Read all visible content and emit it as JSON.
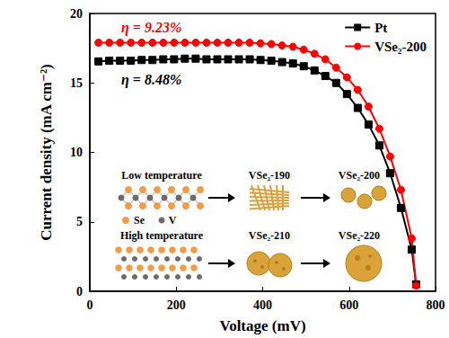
{
  "chart_data": {
    "type": "line",
    "xlabel": "Voltage (mV)",
    "ylabel": "Current density (mA cm⁻²)",
    "x": [
      20,
      45,
      70,
      95,
      120,
      145,
      170,
      195,
      220,
      245,
      270,
      295,
      320,
      345,
      370,
      395,
      420,
      445,
      470,
      495,
      520,
      545,
      570,
      595,
      620,
      645,
      670,
      695,
      720,
      745,
      755
    ],
    "series": [
      {
        "name": "Pt",
        "color": "#000000",
        "marker": "square",
        "line_style": "solid",
        "annotation": "η = 8.48%",
        "values": [
          16.55,
          16.6,
          16.6,
          16.6,
          16.65,
          16.65,
          16.7,
          16.7,
          16.75,
          16.75,
          16.7,
          16.7,
          16.7,
          16.7,
          16.7,
          16.65,
          16.6,
          16.5,
          16.4,
          16.2,
          15.9,
          15.5,
          15.0,
          14.2,
          13.2,
          12.0,
          10.5,
          8.5,
          6.0,
          3.0,
          0.5
        ]
      },
      {
        "name": "VSe₂-200",
        "color": "#ff0000",
        "marker": "circle",
        "line_style": "solid",
        "annotation": "η = 9.23%",
        "values": [
          17.9,
          17.9,
          17.9,
          17.9,
          17.9,
          17.9,
          17.9,
          17.9,
          17.9,
          17.9,
          17.9,
          17.9,
          17.9,
          17.9,
          17.9,
          17.85,
          17.8,
          17.7,
          17.6,
          17.4,
          17.1,
          16.7,
          16.1,
          15.4,
          14.5,
          13.3,
          11.7,
          9.7,
          7.3,
          3.8,
          0.4
        ]
      }
    ],
    "xlim": [
      0,
      800
    ],
    "xticks": [
      0,
      200,
      400,
      600,
      800
    ],
    "ylim": [
      0,
      20
    ],
    "yticks": [
      0,
      5,
      10,
      15,
      20
    ],
    "grid": false,
    "legend": "upper right",
    "inset": {
      "atoms": [
        "Se",
        "V"
      ],
      "rows": [
        {
          "label": "Low temperature",
          "stages": [
            "VSe₂-190",
            "VSe₂-200"
          ]
        },
        {
          "label": "High temperature",
          "stages": [
            "VSe₂-210",
            "VSe₂-220"
          ]
        }
      ]
    }
  }
}
